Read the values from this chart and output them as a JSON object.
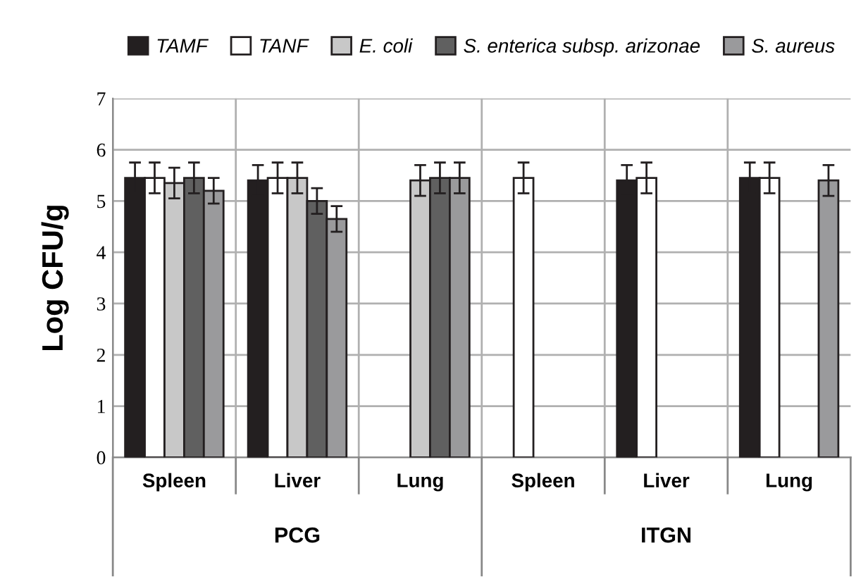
{
  "chart_data": {
    "type": "bar",
    "ylabel": "Log CFU/g",
    "categories": [
      "Spleen",
      "Liver",
      "Lung",
      "Spleen",
      "Liver",
      "Lung"
    ],
    "series": [
      {
        "name": "TAMF",
        "color": "#231f20",
        "values": [
          5.45,
          5.4,
          null,
          null,
          5.4,
          5.45
        ],
        "errors": [
          0.3,
          0.3,
          null,
          null,
          0.3,
          0.3
        ]
      },
      {
        "name": "TANF",
        "color": "#ffffff",
        "values": [
          5.45,
          5.45,
          null,
          5.45,
          5.45,
          5.45
        ],
        "errors": [
          0.3,
          0.3,
          null,
          0.3,
          0.3,
          0.3
        ]
      },
      {
        "name": "E. coli",
        "color": "#c8c8c8",
        "values": [
          5.35,
          5.45,
          5.4,
          null,
          null,
          null
        ],
        "errors": [
          0.3,
          0.3,
          0.3,
          null,
          null,
          null
        ]
      },
      {
        "name": "S. enterica subsp. arizonae",
        "color": "#606060",
        "values": [
          5.45,
          5.0,
          5.45,
          null,
          null,
          null
        ],
        "errors": [
          0.3,
          0.25,
          0.3,
          null,
          null,
          null
        ]
      },
      {
        "name": "S. aureus",
        "color": "#9a9a9c",
        "values": [
          5.2,
          4.65,
          5.45,
          null,
          null,
          5.4
        ],
        "errors": [
          0.25,
          0.25,
          0.3,
          null,
          null,
          0.3
        ]
      }
    ],
    "annotations": [
      "PCG",
      "ITGN"
    ],
    "ylim": [
      0,
      7
    ],
    "yticks": [
      0,
      1,
      2,
      3,
      4,
      5,
      6,
      7
    ],
    "grid": "y",
    "legend": "top"
  }
}
